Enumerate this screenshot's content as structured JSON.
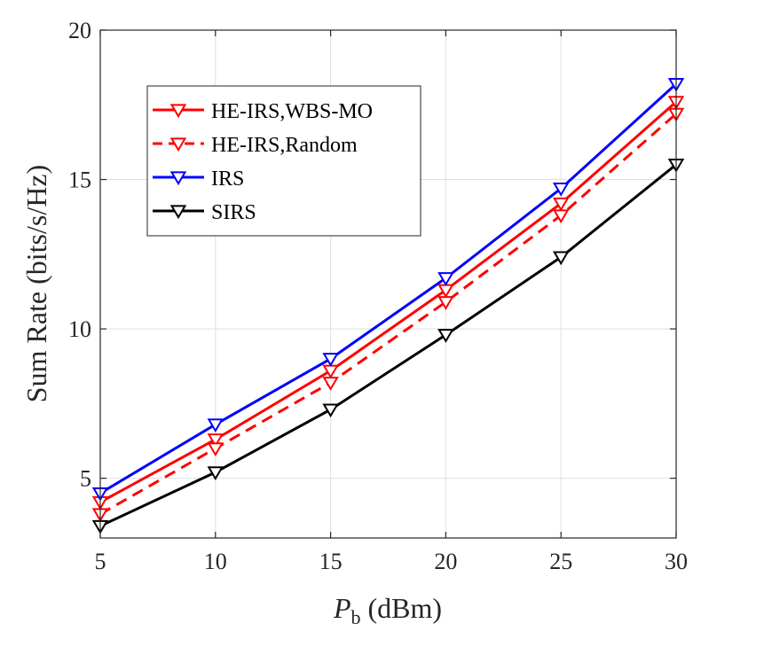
{
  "chart_data": {
    "type": "line",
    "title": "",
    "xlabel_var": "P",
    "xlabel_sub": "b",
    "xlabel_unit": "(dBm)",
    "ylabel": "Sum Rate (bits/s/Hz)",
    "x": [
      5,
      10,
      15,
      20,
      25,
      30
    ],
    "xlim": [
      5,
      30
    ],
    "ylim": [
      3,
      20
    ],
    "xticks": [
      5,
      10,
      15,
      20,
      25,
      30
    ],
    "yticks": [
      5,
      10,
      15,
      20
    ],
    "grid": true,
    "legend_position": "top-left",
    "series": [
      {
        "name": "HE-IRS,WBS-MO",
        "color": "#ff0000",
        "dash": "solid",
        "marker": "triangle-down",
        "values": [
          4.2,
          6.3,
          8.6,
          11.3,
          14.2,
          17.6
        ]
      },
      {
        "name": "HE-IRS,Random",
        "color": "#ff0000",
        "dash": "dashed",
        "marker": "triangle-down",
        "values": [
          3.8,
          6.0,
          8.2,
          10.9,
          13.8,
          17.2
        ]
      },
      {
        "name": "IRS",
        "color": "#0000ff",
        "dash": "solid",
        "marker": "triangle-down",
        "values": [
          4.5,
          6.8,
          9.0,
          11.7,
          14.7,
          18.2
        ]
      },
      {
        "name": "SIRS",
        "color": "#000000",
        "dash": "solid",
        "marker": "triangle-down",
        "values": [
          3.4,
          5.2,
          7.3,
          9.8,
          12.4,
          15.5
        ]
      }
    ]
  }
}
